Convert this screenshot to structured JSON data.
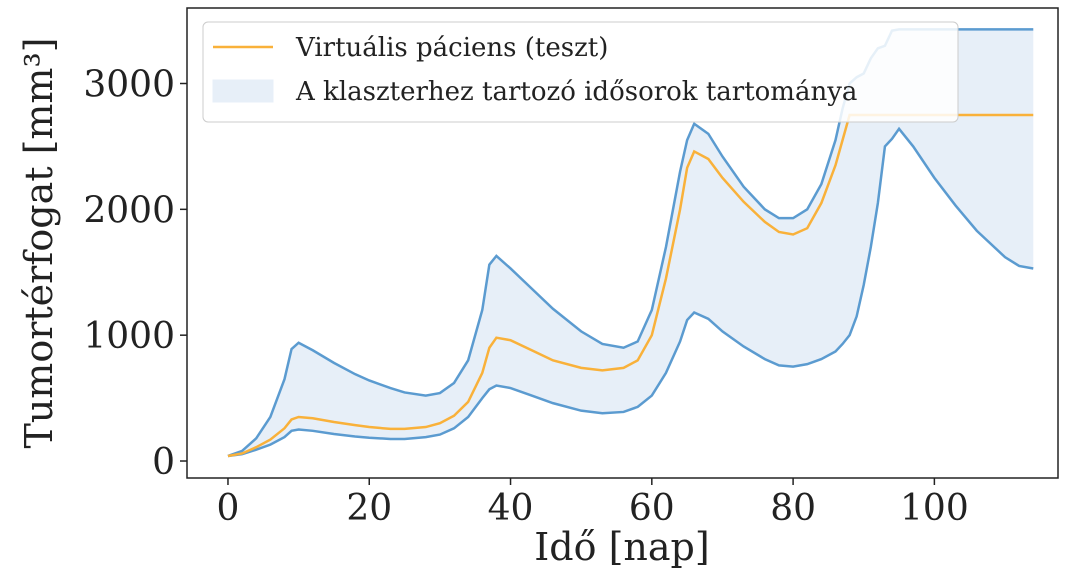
{
  "chart_data": {
    "type": "line",
    "xlabel": "Idő [nap]",
    "ylabel": "Tumortérfogat [mm³]",
    "x": [
      0,
      2,
      4,
      6,
      8,
      9,
      10,
      12,
      15,
      18,
      20,
      23,
      25,
      28,
      30,
      32,
      34,
      36,
      37,
      38,
      40,
      43,
      46,
      50,
      53,
      56,
      58,
      60,
      62,
      64,
      65,
      66,
      68,
      70,
      73,
      76,
      78,
      80,
      82,
      84,
      86,
      87,
      88,
      89,
      90,
      91,
      92,
      93,
      94,
      95,
      97,
      100,
      103,
      106,
      110,
      112,
      114
    ],
    "series": [
      {
        "name": "Virtuális páciens (teszt)",
        "color": "#f9b13a",
        "values": [
          40,
          60,
          110,
          170,
          260,
          330,
          350,
          340,
          310,
          285,
          270,
          255,
          255,
          270,
          300,
          360,
          470,
          700,
          900,
          980,
          960,
          880,
          800,
          740,
          720,
          740,
          800,
          1000,
          1450,
          2000,
          2330,
          2460,
          2400,
          2250,
          2060,
          1900,
          1820,
          1800,
          1850,
          2050,
          2350,
          2550,
          2750,
          2750,
          2750,
          2750,
          2750,
          2750,
          2750,
          2750,
          2750,
          2750,
          2750,
          2750,
          2750,
          2750,
          2750
        ]
      }
    ],
    "band": {
      "name": "A klaszterhez tartozó idősorok tartománya",
      "edge_color": "#5b9bd0",
      "fill_color": "#e7eff8",
      "lower": [
        40,
        55,
        90,
        130,
        190,
        240,
        250,
        240,
        215,
        195,
        185,
        175,
        175,
        190,
        210,
        260,
        350,
        500,
        570,
        600,
        580,
        520,
        460,
        400,
        380,
        390,
        430,
        520,
        700,
        950,
        1120,
        1180,
        1130,
        1030,
        910,
        810,
        760,
        750,
        770,
        810,
        870,
        930,
        1000,
        1150,
        1400,
        1700,
        2050,
        2500,
        2560,
        2640,
        2500,
        2250,
        2030,
        1830,
        1620,
        1550,
        1530
      ],
      "upper": [
        40,
        80,
        180,
        350,
        650,
        890,
        940,
        880,
        780,
        690,
        640,
        580,
        545,
        520,
        540,
        620,
        800,
        1200,
        1560,
        1630,
        1530,
        1370,
        1210,
        1030,
        930,
        900,
        950,
        1200,
        1700,
        2300,
        2550,
        2680,
        2600,
        2420,
        2180,
        2000,
        1930,
        1930,
        2000,
        2200,
        2550,
        2800,
        3000,
        3050,
        3080,
        3200,
        3280,
        3300,
        3420,
        3430,
        3430,
        3430,
        3430,
        3430,
        3430,
        3430,
        3430
      ]
    },
    "xlim": [
      -5.8,
      117.5
    ],
    "ylim": [
      -135,
      3600
    ],
    "xticks": [
      0,
      20,
      40,
      60,
      80,
      100
    ],
    "yticks": [
      0,
      1000,
      2000,
      3000
    ],
    "legend": "upper left"
  }
}
